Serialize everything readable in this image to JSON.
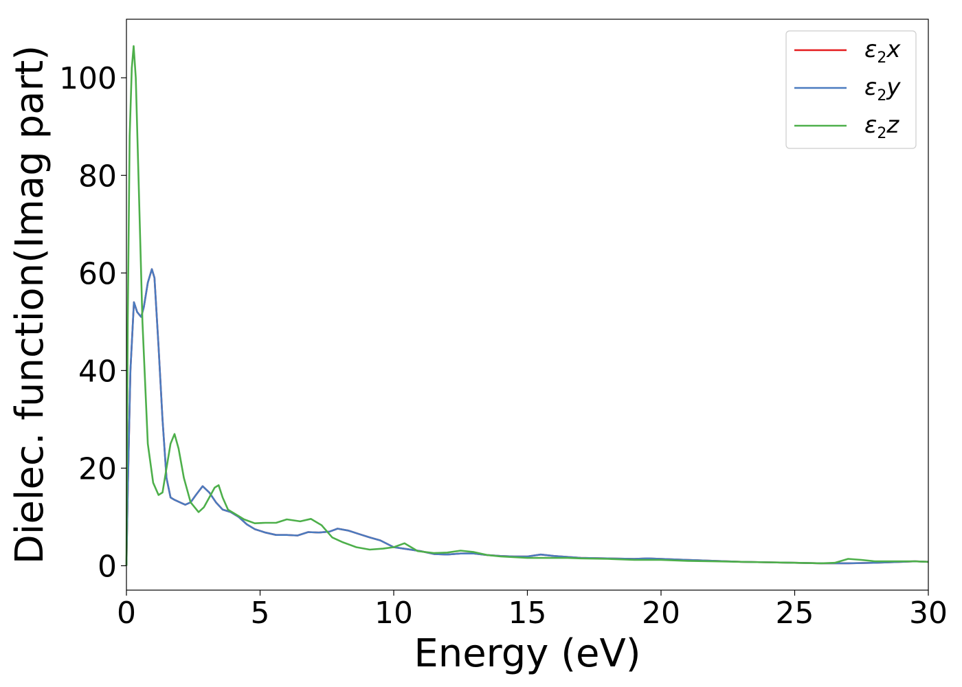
{
  "chart_data": {
    "type": "line",
    "title": "",
    "xlabel": "Energy (eV)",
    "ylabel": "Dielec. function(Imag part)",
    "xlim": [
      0,
      30
    ],
    "ylim": [
      -5,
      112
    ],
    "xticks": [
      0,
      5,
      10,
      15,
      20,
      25,
      30
    ],
    "yticks": [
      0,
      20,
      40,
      60,
      80,
      100
    ],
    "grid": false,
    "legend_position": "top-right",
    "series": [
      {
        "name": "x",
        "color": "#e41a1c",
        "x": [
          0,
          0.05,
          0.15,
          0.28,
          0.4,
          0.55,
          0.65,
          0.8,
          0.95,
          1.05,
          1.2,
          1.35,
          1.5,
          1.65,
          1.8,
          2.0,
          2.2,
          2.4,
          2.6,
          2.85,
          3.1,
          3.35,
          3.6,
          3.9,
          4.2,
          4.5,
          4.8,
          5.2,
          5.6,
          6.0,
          6.4,
          6.8,
          7.2,
          7.6,
          7.9,
          8.3,
          8.7,
          9.1,
          9.5,
          10.0,
          10.5,
          11.0,
          11.5,
          12.0,
          12.5,
          13.0,
          13.5,
          14.0,
          14.5,
          15.0,
          15.5,
          16.0,
          17.0,
          18.0,
          19.0,
          19.5,
          20.0,
          21.0,
          22.0,
          23.0,
          24.0,
          25.0,
          26.0,
          27.0,
          28.0,
          29.0,
          29.5,
          30.0
        ],
        "y": [
          0,
          15,
          40,
          54,
          52,
          51,
          53,
          58,
          60.8,
          59,
          45,
          30,
          18,
          14,
          13.5,
          13,
          12.5,
          13,
          14.5,
          16.3,
          15,
          13,
          11.5,
          11,
          10,
          8.5,
          7.5,
          6.8,
          6.3,
          6.3,
          6.2,
          6.9,
          6.8,
          7,
          7.6,
          7.2,
          6.5,
          5.8,
          5.2,
          3.8,
          3.4,
          3,
          2.4,
          2.3,
          2.5,
          2.5,
          2.2,
          2.0,
          1.9,
          1.9,
          2.3,
          2.0,
          1.6,
          1.5,
          1.4,
          1.5,
          1.4,
          1.2,
          1.0,
          0.8,
          0.7,
          0.6,
          0.5,
          0.5,
          0.6,
          0.8,
          0.9,
          0.8
        ]
      },
      {
        "name": "y",
        "color": "#4a7bbf",
        "x": [
          0,
          0.05,
          0.15,
          0.28,
          0.4,
          0.55,
          0.65,
          0.8,
          0.95,
          1.05,
          1.2,
          1.35,
          1.5,
          1.65,
          1.8,
          2.0,
          2.2,
          2.4,
          2.6,
          2.85,
          3.1,
          3.35,
          3.6,
          3.9,
          4.2,
          4.5,
          4.8,
          5.2,
          5.6,
          6.0,
          6.4,
          6.8,
          7.2,
          7.6,
          7.9,
          8.3,
          8.7,
          9.1,
          9.5,
          10.0,
          10.5,
          11.0,
          11.5,
          12.0,
          12.5,
          13.0,
          13.5,
          14.0,
          14.5,
          15.0,
          15.5,
          16.0,
          17.0,
          18.0,
          19.0,
          19.5,
          20.0,
          21.0,
          22.0,
          23.0,
          24.0,
          25.0,
          26.0,
          27.0,
          28.0,
          29.0,
          29.5,
          30.0
        ],
        "y": [
          0,
          15,
          40,
          54,
          52,
          51,
          53,
          58,
          60.8,
          59,
          45,
          30,
          18,
          14,
          13.5,
          13,
          12.5,
          13,
          14.5,
          16.3,
          15,
          13,
          11.5,
          11,
          10,
          8.5,
          7.5,
          6.8,
          6.3,
          6.3,
          6.2,
          6.9,
          6.8,
          7,
          7.6,
          7.2,
          6.5,
          5.8,
          5.2,
          3.8,
          3.4,
          3,
          2.4,
          2.3,
          2.5,
          2.5,
          2.2,
          2.0,
          1.9,
          1.9,
          2.3,
          2.0,
          1.6,
          1.5,
          1.4,
          1.5,
          1.4,
          1.2,
          1.0,
          0.8,
          0.7,
          0.6,
          0.5,
          0.5,
          0.6,
          0.8,
          0.9,
          0.8
        ]
      },
      {
        "name": "z",
        "color": "#4daf4a",
        "x": [
          0,
          0.05,
          0.12,
          0.2,
          0.27,
          0.35,
          0.45,
          0.6,
          0.8,
          1.0,
          1.2,
          1.35,
          1.5,
          1.65,
          1.8,
          1.95,
          2.15,
          2.4,
          2.7,
          2.9,
          3.1,
          3.3,
          3.45,
          3.6,
          3.8,
          4.1,
          4.4,
          4.8,
          5.2,
          5.6,
          6.0,
          6.5,
          6.9,
          7.3,
          7.7,
          8.1,
          8.6,
          9.1,
          9.6,
          10.0,
          10.4,
          10.9,
          11.5,
          12.0,
          12.5,
          13.0,
          13.5,
          14.0,
          15.0,
          16.0,
          16.5,
          17.0,
          18.0,
          19.0,
          20.0,
          21.0,
          22.0,
          23.0,
          24.0,
          25.0,
          26.0,
          26.5,
          27.0,
          27.5,
          28.0,
          28.5,
          29.0,
          29.5,
          30.0
        ],
        "y": [
          0,
          50,
          88,
          102,
          106.5,
          100,
          80,
          50,
          25,
          17,
          14.5,
          15,
          20,
          25,
          27,
          24,
          18,
          13,
          11,
          12,
          14,
          16,
          16.5,
          14,
          11.5,
          10.5,
          9.5,
          8.7,
          8.8,
          8.8,
          9.5,
          9.1,
          9.6,
          8.3,
          5.8,
          4.8,
          3.8,
          3.3,
          3.5,
          3.8,
          4.6,
          3.0,
          2.6,
          2.7,
          3.1,
          2.8,
          2.2,
          1.9,
          1.6,
          1.6,
          1.6,
          1.5,
          1.4,
          1.2,
          1.2,
          1.0,
          0.9,
          0.8,
          0.7,
          0.6,
          0.5,
          0.6,
          1.4,
          1.2,
          0.9,
          0.9,
          0.9,
          0.9,
          0.8
        ]
      }
    ]
  }
}
